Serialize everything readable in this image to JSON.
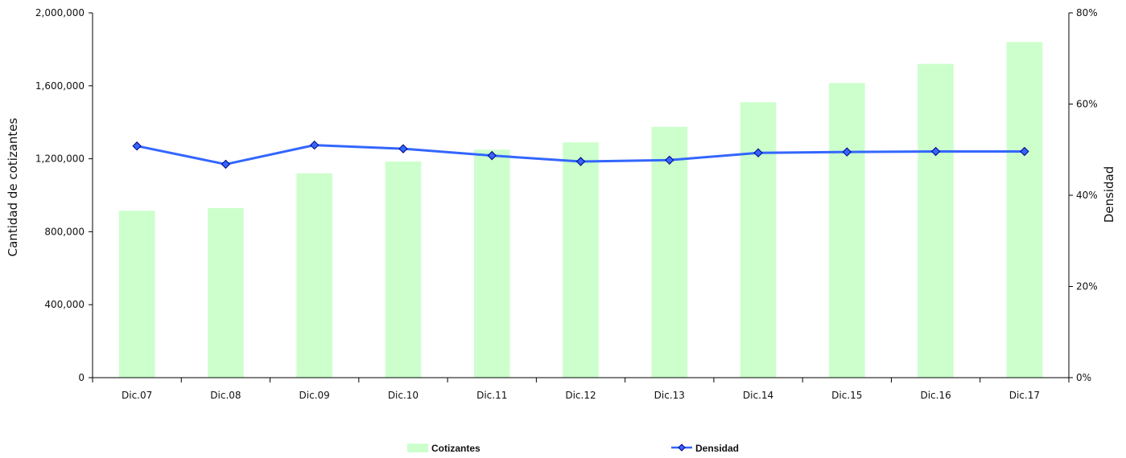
{
  "chart_data": {
    "type": "bar",
    "categories": [
      "Dic.07",
      "Dic.08",
      "Dic.09",
      "Dic.10",
      "Dic.11",
      "Dic.12",
      "Dic.13",
      "Dic.14",
      "Dic.15",
      "Dic.16",
      "Dic.17"
    ],
    "series": [
      {
        "name": "Cotizantes",
        "type": "bar",
        "axis": "left",
        "color": "#ccffcc",
        "values": [
          915000,
          930000,
          1120000,
          1185000,
          1250000,
          1290000,
          1375000,
          1510000,
          1615000,
          1720000,
          1840000
        ]
      },
      {
        "name": "Densidad",
        "type": "line",
        "axis": "right",
        "color": "#3366ff",
        "marker": "diamond",
        "values": [
          0.508,
          0.468,
          0.51,
          0.502,
          0.487,
          0.474,
          0.477,
          0.493,
          0.495,
          0.496,
          0.496
        ]
      }
    ],
    "ylabel": "Cantidad de cotizantes",
    "ylim": [
      0,
      2000000
    ],
    "y_ticks": [
      "0",
      "400,000",
      "800,000",
      "1,200,000",
      "1,600,000",
      "2,000,000"
    ],
    "y2label": "Densidad",
    "y2lim": [
      0,
      0.8
    ],
    "y2_ticks": [
      "0%",
      "20%",
      "40%",
      "60%",
      "80%"
    ],
    "grid": false,
    "legend_position": "bottom"
  }
}
